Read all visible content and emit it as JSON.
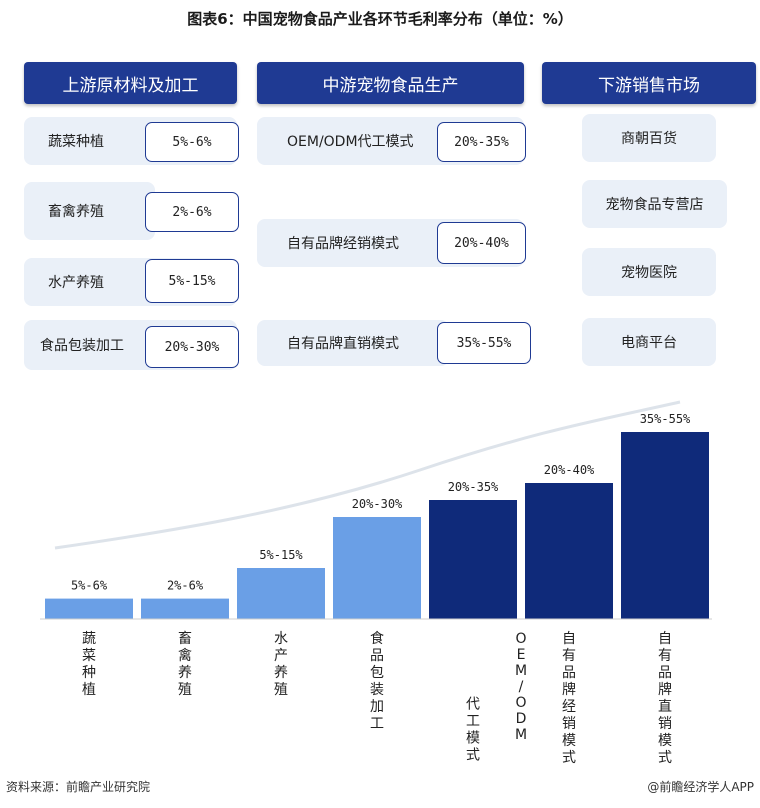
{
  "title": "图表6：中国宠物食品产业各环节毛利率分布（单位：%）",
  "upstream": {
    "header": "上游原材料及加工",
    "items": [
      {
        "label": "蔬菜种植",
        "value": "5%-6%"
      },
      {
        "label": "畜禽养殖",
        "value": "2%-6%"
      },
      {
        "label": "水产养殖",
        "value": "5%-15%"
      },
      {
        "label": "食品包装加工",
        "value": "20%-30%"
      }
    ]
  },
  "midstream": {
    "header": "中游宠物食品生产",
    "items": [
      {
        "label": "OEM/ODM代工模式",
        "value": "20%-35%"
      },
      {
        "label": "自有品牌经销模式",
        "value": "20%-40%"
      },
      {
        "label": "自有品牌直销模式",
        "value": "35%-55%"
      }
    ]
  },
  "downstream": {
    "header": "下游销售市场",
    "items": [
      "商朝百货",
      "宠物食品专营店",
      "宠物医院",
      "电商平台"
    ]
  },
  "chart_data": {
    "type": "bar",
    "categories": [
      "蔬菜种植",
      "畜禽养殖",
      "水产养殖",
      "食品包装加工",
      "OEM/ODM代工模式",
      "自有品牌经销模式",
      "自有品牌直销模式"
    ],
    "value_ranges": [
      [
        5,
        6
      ],
      [
        2,
        6
      ],
      [
        5,
        15
      ],
      [
        20,
        30
      ],
      [
        20,
        35
      ],
      [
        20,
        40
      ],
      [
        35,
        55
      ]
    ],
    "labels": [
      "5%-6%",
      "2%-6%",
      "5%-15%",
      "20%-30%",
      "20%-35%",
      "20%-40%",
      "35%-55%"
    ],
    "bar_colors": [
      "#6a9fe6",
      "#6a9fe6",
      "#6a9fe6",
      "#6a9fe6",
      "#0f2a7a",
      "#0f2a7a",
      "#0f2a7a"
    ],
    "grid": false
  },
  "footer": {
    "source": "资料来源：前瞻产业研究院",
    "brand": "@前瞻经济学人APP"
  }
}
